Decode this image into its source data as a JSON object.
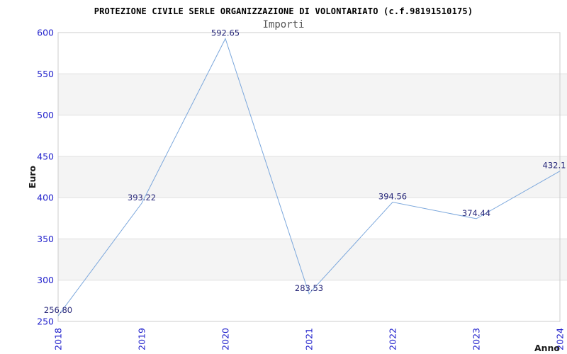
{
  "title": "PROTEZIONE CIVILE SERLE ORGANIZZAZIONE DI VOLONTARIATO (c.f.98191510175)",
  "subtitle": "Importi",
  "chart_data": {
    "type": "line",
    "x": [
      2018,
      2019,
      2020,
      2021,
      2022,
      2023,
      2024
    ],
    "series": [
      {
        "name": "Importi",
        "values": [
          256.8,
          393.22,
          592.65,
          283.53,
          394.56,
          374.44,
          432.1
        ]
      }
    ],
    "point_labels": [
      "256.80",
      "393.22",
      "592.65",
      "283.53",
      "394.56",
      "374.44",
      "432.1"
    ],
    "xlabel": "Anno",
    "ylabel": "Euro",
    "ylim": [
      250,
      600
    ],
    "yticks": [
      250,
      300,
      350,
      400,
      450,
      500,
      550,
      600
    ],
    "grid": "horizontal-gridlines-with-alternating-bands",
    "legend_position": "none"
  },
  "colors": {
    "background": "#ffffff",
    "line": "#7ba7dc",
    "tick_label": "#2222cc",
    "point_label": "#28287a",
    "band_gray": "#f4f4f4",
    "gridline": "#e0e0e0",
    "frame": "#cccccc",
    "title": "#000000",
    "subtitle": "#555555",
    "axis_title": "#1a1a1a"
  }
}
